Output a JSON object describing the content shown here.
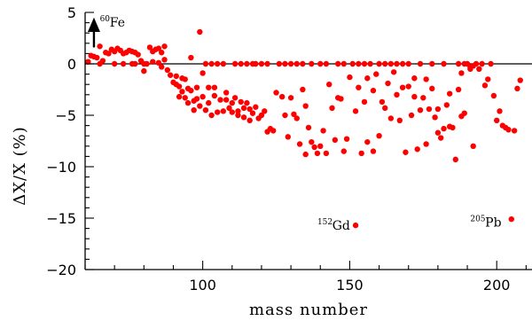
{
  "chart_data": {
    "type": "scatter",
    "xlabel": "mass number",
    "ylabel": "ΔX/X (%)",
    "xlim": [
      60,
      212
    ],
    "ylim": [
      -20,
      5
    ],
    "x_ticks": [
      100,
      150,
      200
    ],
    "y_ticks": [
      5,
      0,
      -5,
      -10,
      -15,
      -20
    ],
    "x_tick_labels": [
      "100",
      "150",
      "200"
    ],
    "y_tick_labels": [
      "5",
      "0",
      "−5",
      "−10",
      "−15",
      "−20"
    ],
    "reference_line_y": 0,
    "marker_color": "#ff0000",
    "annotations": [
      {
        "sup": "60",
        "text": "Fe",
        "x": 65,
        "y": 3.6,
        "arrow": "up"
      },
      {
        "sup": "152",
        "text": "Gd",
        "x": 139,
        "y": -16.1
      },
      {
        "sup": "205",
        "text": "Pb",
        "x": 191,
        "y": -15.8
      }
    ],
    "series": [
      {
        "points": [
          [
            61,
            0.2
          ],
          [
            62,
            0.8
          ],
          [
            63,
            0.7
          ],
          [
            64,
            0.6
          ],
          [
            65,
            1.7
          ],
          [
            65,
            0.0
          ],
          [
            66,
            0.3
          ],
          [
            67,
            1.1
          ],
          [
            68,
            1.0
          ],
          [
            69,
            1.4
          ],
          [
            70,
            0.0
          ],
          [
            70,
            1.2
          ],
          [
            71,
            1.5
          ],
          [
            72,
            1.3
          ],
          [
            73,
            0.0
          ],
          [
            73,
            1.0
          ],
          [
            74,
            1.1
          ],
          [
            75,
            1.3
          ],
          [
            76,
            0.0
          ],
          [
            76,
            1.2
          ],
          [
            77,
            0.0
          ],
          [
            77,
            1.1
          ],
          [
            78,
            0.9
          ],
          [
            79,
            0.3
          ],
          [
            80,
            0.0
          ],
          [
            80,
            -0.7
          ],
          [
            81,
            0.0
          ],
          [
            82,
            1.6
          ],
          [
            83,
            1.2
          ],
          [
            83,
            0.2
          ],
          [
            84,
            1.4
          ],
          [
            85,
            1.5
          ],
          [
            85,
            0.1
          ],
          [
            86,
            1.1
          ],
          [
            86,
            -0.3
          ],
          [
            87,
            1.7
          ],
          [
            87,
            0.4
          ],
          [
            88,
            -0.6
          ],
          [
            89,
            -1.1
          ],
          [
            90,
            -1.8
          ],
          [
            91,
            -2.0
          ],
          [
            91,
            -1.2
          ],
          [
            92,
            -2.2
          ],
          [
            92,
            -3.2
          ],
          [
            93,
            -1.4
          ],
          [
            93,
            -2.7
          ],
          [
            94,
            -3.3
          ],
          [
            94,
            -1.5
          ],
          [
            95,
            -2.4
          ],
          [
            95,
            -3.8
          ],
          [
            96,
            0.6
          ],
          [
            96,
            -2.6
          ],
          [
            97,
            -3.6
          ],
          [
            97,
            -4.5
          ],
          [
            98,
            -2.3
          ],
          [
            98,
            -3.4
          ],
          [
            99,
            3.1
          ],
          [
            99,
            -4.1
          ],
          [
            100,
            -3.2
          ],
          [
            100,
            -0.9
          ],
          [
            101,
            0.0
          ],
          [
            101,
            -4.5
          ],
          [
            102,
            -2.3
          ],
          [
            102,
            -3.8
          ],
          [
            103,
            0.0
          ],
          [
            103,
            -5.0
          ],
          [
            104,
            -2.3
          ],
          [
            104,
            -3.1
          ],
          [
            105,
            0.0
          ],
          [
            105,
            -4.7
          ],
          [
            106,
            -3.5
          ],
          [
            107,
            0.0
          ],
          [
            107,
            -4.6
          ],
          [
            108,
            -3.5
          ],
          [
            108,
            -2.8
          ],
          [
            109,
            -4.3
          ],
          [
            110,
            -3.8
          ],
          [
            110,
            -4.7
          ],
          [
            111,
            0.0
          ],
          [
            111,
            -3.3
          ],
          [
            112,
            -4.6
          ],
          [
            112,
            -5.0
          ],
          [
            113,
            0.0
          ],
          [
            113,
            -3.7
          ],
          [
            114,
            -4.3
          ],
          [
            114,
            -5.2
          ],
          [
            115,
            0.0
          ],
          [
            115,
            -3.8
          ],
          [
            116,
            -4.4
          ],
          [
            116,
            -5.5
          ],
          [
            117,
            0.0
          ],
          [
            117,
            -4.8
          ],
          [
            118,
            0.0
          ],
          [
            118,
            -4.2
          ],
          [
            119,
            -5.3
          ],
          [
            120,
            -5.0
          ],
          [
            120,
            0.0
          ],
          [
            121,
            -4.6
          ],
          [
            122,
            -6.6
          ],
          [
            122,
            0.0
          ],
          [
            123,
            -6.3
          ],
          [
            124,
            -6.5
          ],
          [
            125,
            -2.8
          ],
          [
            126,
            0.0
          ],
          [
            127,
            -3.2
          ],
          [
            128,
            -5.0
          ],
          [
            128,
            0.0
          ],
          [
            129,
            -7.1
          ],
          [
            130,
            -3.3
          ],
          [
            130,
            0.0
          ],
          [
            131,
            -4.9
          ],
          [
            132,
            -5.3
          ],
          [
            132,
            0.0
          ],
          [
            133,
            -7.8
          ],
          [
            134,
            -2.5
          ],
          [
            134,
            0.0
          ],
          [
            135,
            -4.1
          ],
          [
            135,
            -8.8
          ],
          [
            136,
            -6.2
          ],
          [
            137,
            -7.6
          ],
          [
            137,
            0.0
          ],
          [
            138,
            -8.1
          ],
          [
            139,
            -8.7
          ],
          [
            140,
            -8.0
          ],
          [
            140,
            0.0
          ],
          [
            141,
            -6.5
          ],
          [
            142,
            -8.7
          ],
          [
            142,
            0.0
          ],
          [
            143,
            -2.0
          ],
          [
            144,
            -4.3
          ],
          [
            145,
            -7.4
          ],
          [
            146,
            -3.3
          ],
          [
            146,
            0.0
          ],
          [
            147,
            -3.4
          ],
          [
            148,
            -8.5
          ],
          [
            148,
            0.0
          ],
          [
            149,
            -7.3
          ],
          [
            150,
            -1.3
          ],
          [
            151,
            0.0
          ],
          [
            152,
            -15.7
          ],
          [
            152,
            -4.6
          ],
          [
            153,
            -2.3
          ],
          [
            153,
            0.0
          ],
          [
            154,
            -8.7
          ],
          [
            155,
            -3.7
          ],
          [
            155,
            0.0
          ],
          [
            156,
            -1.4
          ],
          [
            156,
            -7.6
          ],
          [
            157,
            0.0
          ],
          [
            158,
            -2.6
          ],
          [
            158,
            -8.5
          ],
          [
            159,
            -1.0
          ],
          [
            160,
            0.0
          ],
          [
            160,
            -7.0
          ],
          [
            161,
            -3.7
          ],
          [
            162,
            -4.3
          ],
          [
            162,
            0.0
          ],
          [
            163,
            -1.9
          ],
          [
            164,
            -5.3
          ],
          [
            164,
            0.0
          ],
          [
            165,
            -0.8
          ],
          [
            166,
            -3.0
          ],
          [
            166,
            0.0
          ],
          [
            167,
            -5.5
          ],
          [
            168,
            -2.3
          ],
          [
            168,
            0.0
          ],
          [
            169,
            -8.6
          ],
          [
            170,
            -2.2
          ],
          [
            170,
            0.0
          ],
          [
            171,
            -5.0
          ],
          [
            172,
            -3.2
          ],
          [
            172,
            -1.4
          ],
          [
            173,
            -8.3
          ],
          [
            174,
            -4.5
          ],
          [
            174,
            0.0
          ],
          [
            175,
            -3.3
          ],
          [
            176,
            -1.5
          ],
          [
            176,
            -7.8
          ],
          [
            177,
            -4.4
          ],
          [
            178,
            -2.4
          ],
          [
            178,
            0.0
          ],
          [
            179,
            -5.2
          ],
          [
            180,
            -4.4
          ],
          [
            180,
            -6.7
          ],
          [
            181,
            -7.2
          ],
          [
            182,
            -6.3
          ],
          [
            182,
            0.0
          ],
          [
            183,
            -4.0
          ],
          [
            184,
            -2.9
          ],
          [
            184,
            -6.1
          ],
          [
            185,
            -6.2
          ],
          [
            186,
            -9.3
          ],
          [
            187,
            -2.5
          ],
          [
            187,
            0.0
          ],
          [
            188,
            -5.1
          ],
          [
            188,
            -0.9
          ],
          [
            189,
            -4.8
          ],
          [
            189,
            0.0
          ],
          [
            190,
            0.0
          ],
          [
            191,
            -0.3
          ],
          [
            191,
            -0.5
          ],
          [
            192,
            -0.2
          ],
          [
            192,
            -8.0
          ],
          [
            193,
            0.0
          ],
          [
            194,
            -0.5
          ],
          [
            195,
            0.0
          ],
          [
            196,
            -2.1
          ],
          [
            197,
            -1.5
          ],
          [
            198,
            0.0
          ],
          [
            199,
            -3.1
          ],
          [
            200,
            -5.5
          ],
          [
            201,
            -4.6
          ],
          [
            202,
            -6.0
          ],
          [
            203,
            -6.2
          ],
          [
            204,
            -6.4
          ],
          [
            205,
            -15.1
          ],
          [
            206,
            -6.5
          ],
          [
            207,
            -2.4
          ],
          [
            208,
            -1.6
          ]
        ]
      }
    ]
  }
}
